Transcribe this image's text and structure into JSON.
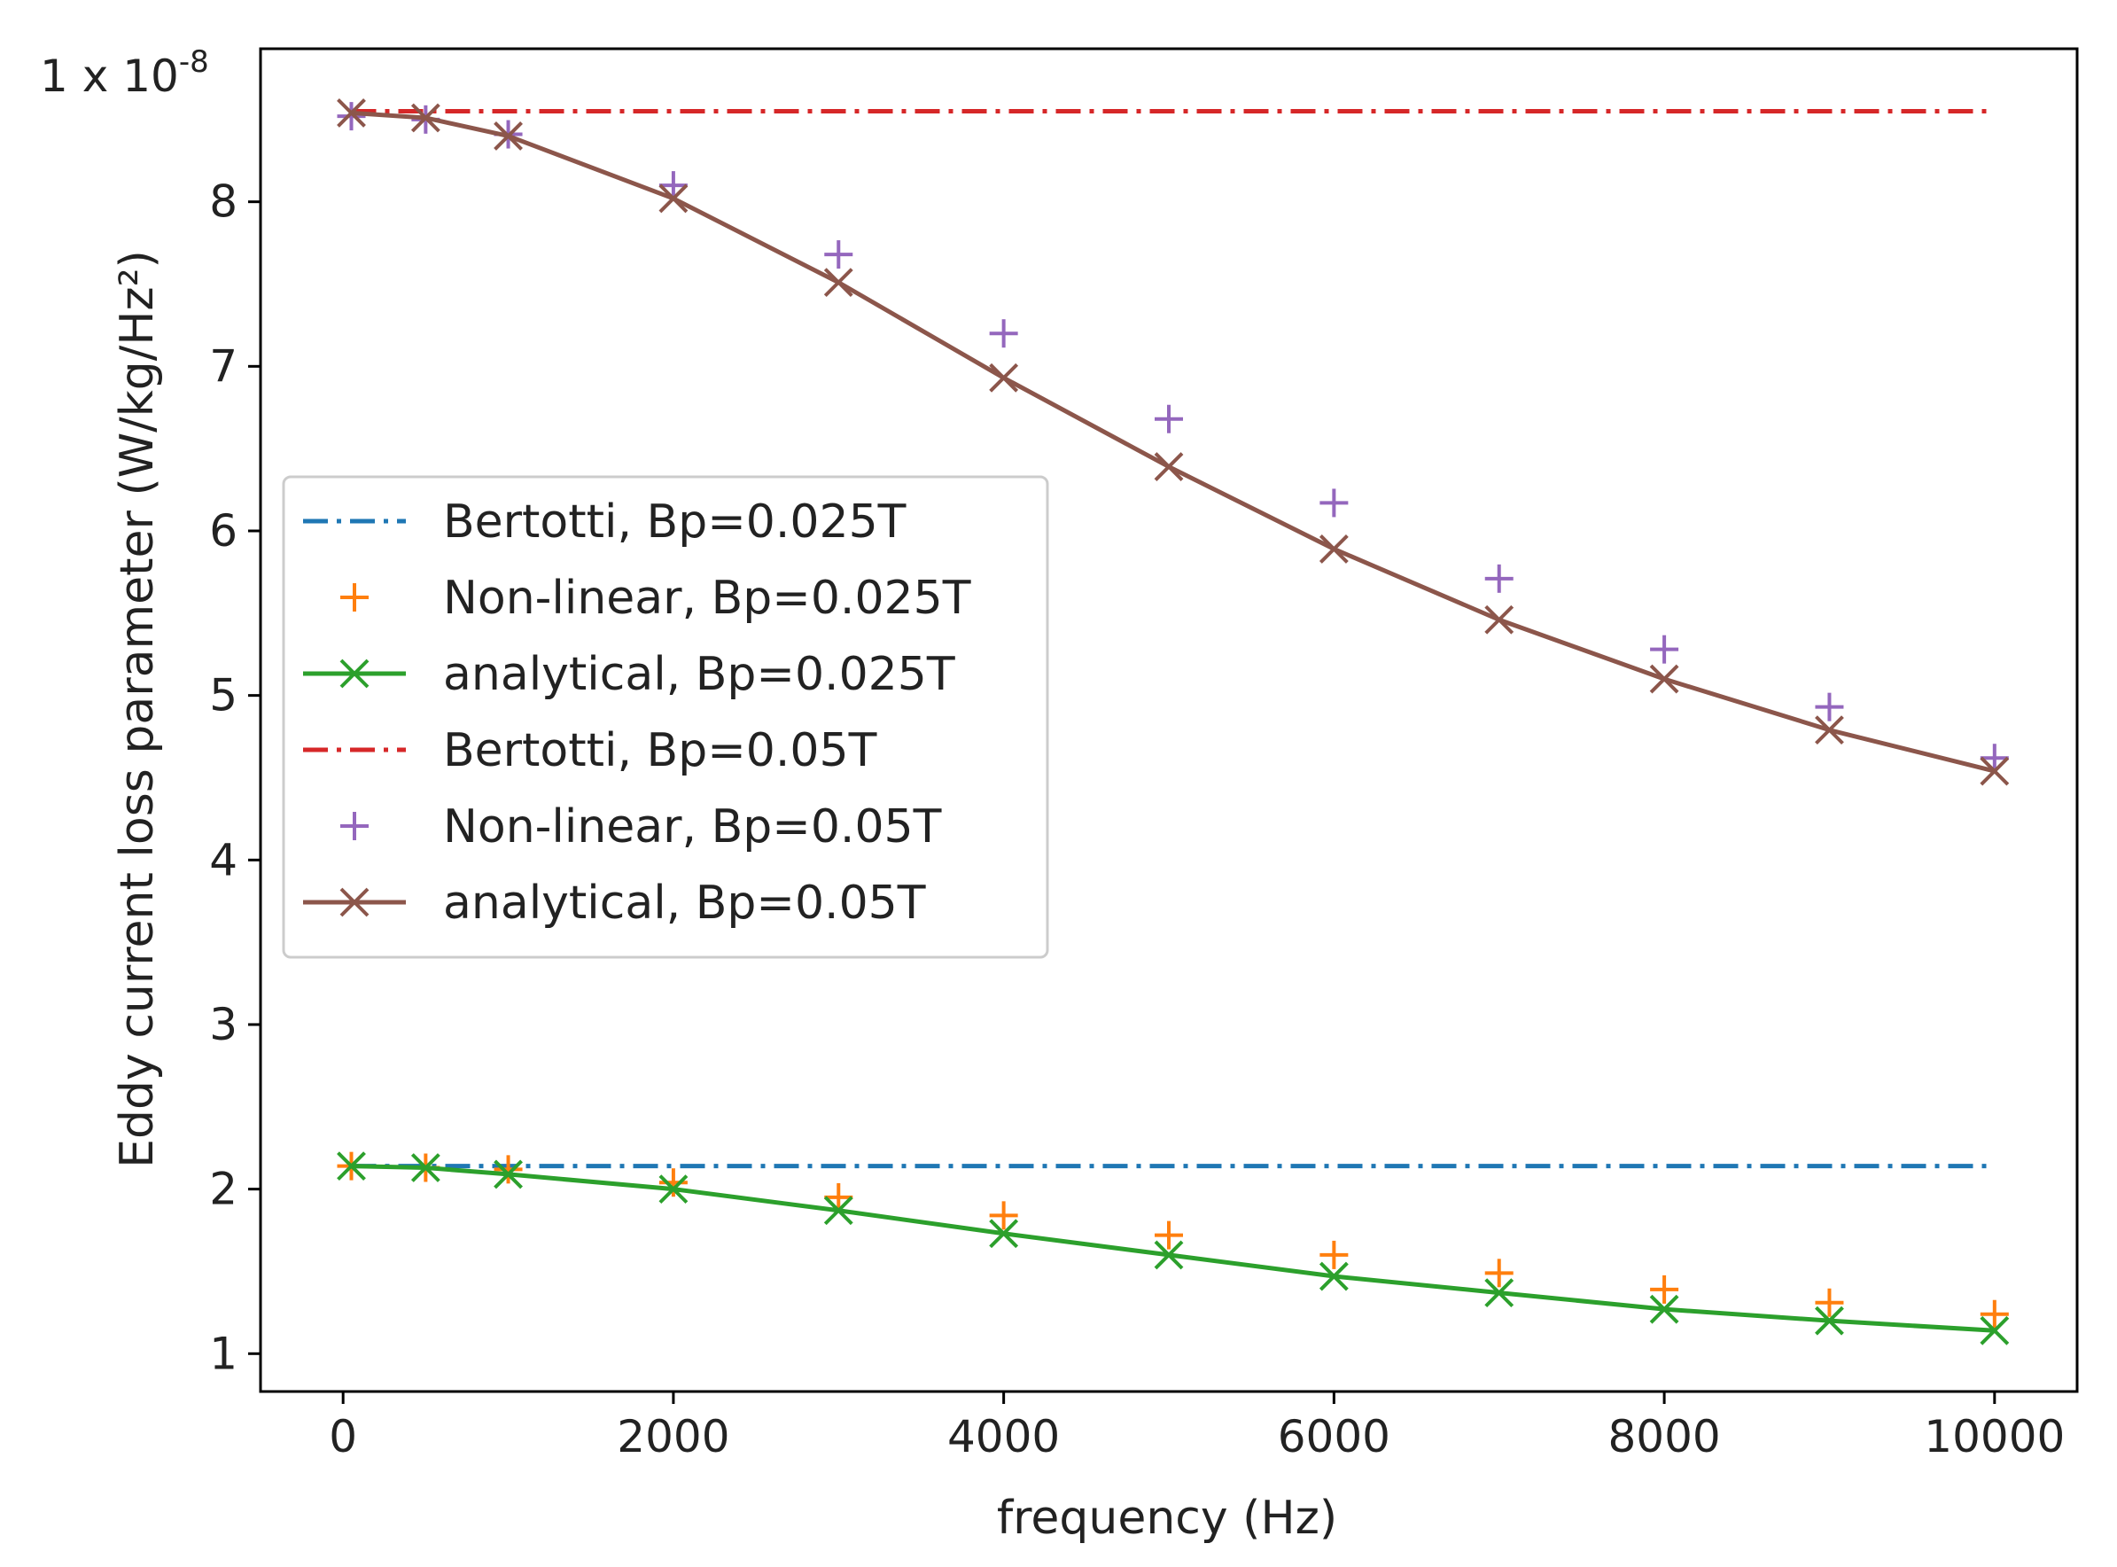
{
  "chart_data": {
    "type": "line",
    "title": "",
    "xlabel": "frequency (Hz)",
    "ylabel": "Eddy current loss parameter (W/kg/Hz²)",
    "y_multiplier_base": "1 x 10",
    "y_multiplier_exponent": "-8",
    "xlim": [
      -500,
      10500
    ],
    "ylim": [
      0.77,
      8.93
    ],
    "xticks": [
      0,
      2000,
      4000,
      6000,
      8000,
      10000
    ],
    "yticks": [
      1,
      2,
      3,
      4,
      5,
      6,
      7,
      8
    ],
    "grid": false,
    "legend_position": "center-left",
    "series": [
      {
        "name": "Bertotti, Bp=0.025T",
        "style": "dashdot",
        "marker": "none",
        "color": "#1f77b4",
        "x": [
          50,
          10000
        ],
        "values": [
          2.14,
          2.14
        ]
      },
      {
        "name": "Non-linear, Bp=0.025T",
        "style": "none",
        "marker": "+",
        "color": "#ff7f0e",
        "x": [
          50,
          500,
          1000,
          2000,
          3000,
          4000,
          5000,
          6000,
          7000,
          8000,
          9000,
          10000
        ],
        "values": [
          2.14,
          2.13,
          2.12,
          2.04,
          1.95,
          1.84,
          1.72,
          1.6,
          1.49,
          1.39,
          1.31,
          1.24
        ]
      },
      {
        "name": "analytical, Bp=0.025T",
        "style": "solid",
        "marker": "x",
        "color": "#2ca02c",
        "x": [
          50,
          500,
          1000,
          2000,
          3000,
          4000,
          5000,
          6000,
          7000,
          8000,
          9000,
          10000
        ],
        "values": [
          2.14,
          2.13,
          2.09,
          2.0,
          1.87,
          1.73,
          1.6,
          1.47,
          1.37,
          1.27,
          1.2,
          1.14
        ]
      },
      {
        "name": "Bertotti, Bp=0.05T",
        "style": "dashdot",
        "marker": "none",
        "color": "#d62728",
        "x": [
          50,
          10000
        ],
        "values": [
          8.55,
          8.55
        ]
      },
      {
        "name": "Non-linear, Bp=0.05T",
        "style": "none",
        "marker": "+",
        "color": "#9467bd",
        "x": [
          50,
          500,
          1000,
          2000,
          3000,
          4000,
          5000,
          6000,
          7000,
          8000,
          9000,
          10000
        ],
        "values": [
          8.52,
          8.5,
          8.41,
          8.1,
          7.68,
          7.2,
          6.68,
          6.17,
          5.71,
          5.28,
          4.93,
          4.62
        ]
      },
      {
        "name": "analytical, Bp=0.05T",
        "style": "solid",
        "marker": "x",
        "color": "#8c564b",
        "x": [
          50,
          500,
          1000,
          2000,
          3000,
          4000,
          5000,
          6000,
          7000,
          8000,
          9000,
          10000
        ],
        "values": [
          8.54,
          8.51,
          8.4,
          8.02,
          7.51,
          6.93,
          6.39,
          5.89,
          5.46,
          5.1,
          4.79,
          4.54
        ]
      }
    ]
  }
}
